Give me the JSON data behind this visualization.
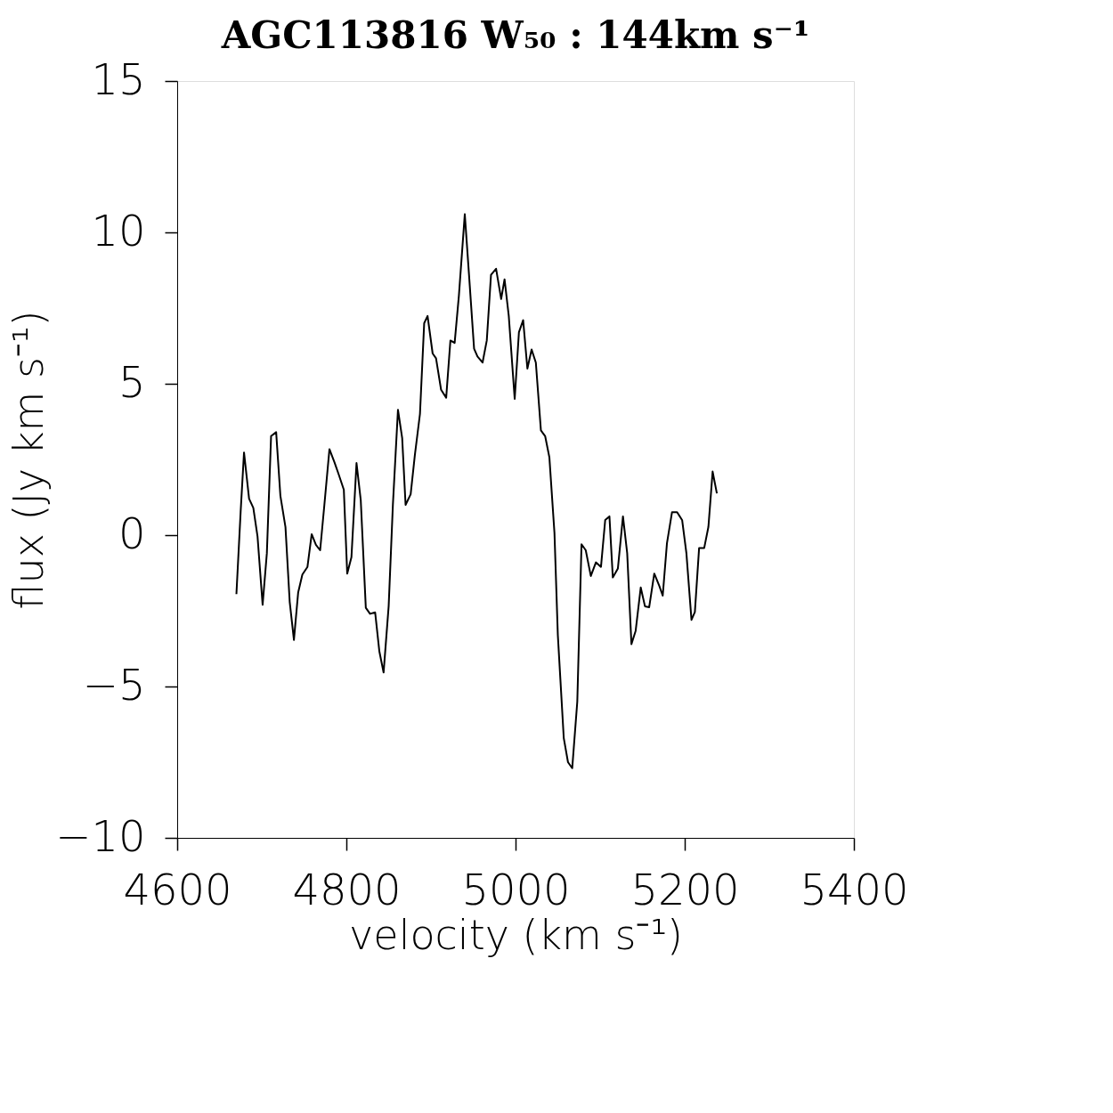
{
  "chart_data": {
    "type": "line",
    "title": "AGC113816 W₅₀ : 144km s⁻¹",
    "xlabel": "velocity (km s⁻¹)",
    "ylabel": "flux (Jy km s⁻¹)",
    "x": [
      4670,
      4675,
      4679,
      4685,
      4690,
      4695,
      4701,
      4706,
      4711,
      4717,
      4722,
      4728,
      4733,
      4738,
      4743,
      4748,
      4754,
      4759,
      4764,
      4769,
      4774,
      4780,
      4786,
      4791,
      4797,
      4801,
      4806,
      4812,
      4817,
      4823,
      4828,
      4834,
      4839,
      4844,
      4850,
      4855,
      4861,
      4866,
      4870,
      4876,
      4881,
      4887,
      4892,
      4896,
      4902,
      4906,
      4912,
      4918,
      4923,
      4928,
      4933,
      4940,
      4945,
      4951,
      4955,
      4961,
      4966,
      4971,
      4977,
      4983,
      4987,
      4992,
      4999,
      5004,
      5009,
      5014,
      5019,
      5024,
      5030,
      5035,
      5040,
      5046,
      5050,
      5057,
      5062,
      5067,
      5073,
      5078,
      5083,
      5089,
      5095,
      5101,
      5106,
      5111,
      5115,
      5121,
      5127,
      5132,
      5137,
      5142,
      5148,
      5153,
      5158,
      5164,
      5170,
      5174,
      5179,
      5185,
      5191,
      5197,
      5202,
      5208,
      5212,
      5217,
      5223,
      5228,
      5233,
      5238
    ],
    "series": [
      {
        "color": "#000000",
        "values": [
          -1.95,
          0.76,
          2.73,
          1.2,
          0.9,
          -0.05,
          -2.3,
          -0.6,
          3.27,
          3.4,
          1.3,
          0.27,
          -2.2,
          -3.46,
          -1.9,
          -1.3,
          -1.05,
          0.03,
          -0.32,
          -0.5,
          1.0,
          2.84,
          2.4,
          2.0,
          1.5,
          -1.27,
          -0.73,
          2.38,
          1.16,
          -2.4,
          -2.6,
          -2.55,
          -3.84,
          -4.54,
          -2.35,
          1.0,
          4.14,
          3.2,
          1.0,
          1.35,
          2.65,
          4.0,
          7.0,
          7.24,
          6.0,
          5.84,
          4.8,
          4.54,
          6.43,
          6.35,
          7.9,
          10.6,
          8.6,
          6.16,
          5.9,
          5.7,
          6.43,
          8.6,
          8.8,
          7.8,
          8.45,
          7.24,
          4.5,
          6.7,
          7.1,
          5.5,
          6.13,
          5.7,
          3.46,
          3.27,
          2.57,
          0.08,
          -3.3,
          -6.7,
          -7.5,
          -7.7,
          -5.5,
          -0.3,
          -0.5,
          -1.35,
          -0.9,
          -1.05,
          0.5,
          0.62,
          -1.4,
          -1.1,
          0.62,
          -0.6,
          -3.6,
          -3.16,
          -1.73,
          -2.35,
          -2.38,
          -1.27,
          -1.68,
          -2.0,
          -0.27,
          0.76,
          0.76,
          0.49,
          -0.6,
          -2.8,
          -2.54,
          -0.43,
          -0.43,
          0.27,
          2.1,
          1.38
        ]
      }
    ],
    "xlim": [
      4600,
      5400
    ],
    "ylim": [
      -10,
      15
    ],
    "xticks": [
      4600,
      4800,
      5000,
      5200,
      5400
    ],
    "yticks": [
      -10,
      -5,
      0,
      5,
      10,
      15
    ],
    "grid": false,
    "marker": "none",
    "line_style": "solid"
  }
}
